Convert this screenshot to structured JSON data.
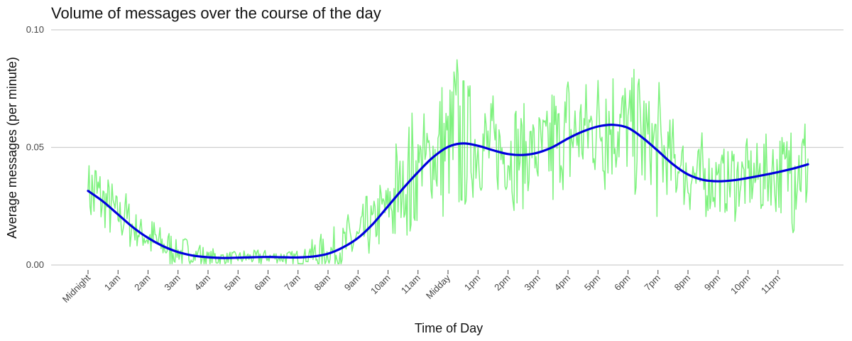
{
  "chart_data": {
    "type": "line",
    "title": "Volume of messages over the course of the day",
    "xlabel": "Time of Day",
    "ylabel": "Average messages (per minute)",
    "ylim": [
      0,
      0.1
    ],
    "yticks": [
      "0.00",
      "0.05",
      "0.10"
    ],
    "ytick_values": [
      0,
      0.05,
      0.1
    ],
    "grid": "horizontal major gridlines",
    "legend": "none",
    "xticks": [
      "Midnight",
      "1am",
      "2am",
      "3am",
      "4am",
      "5am",
      "6am",
      "7am",
      "8am",
      "9am",
      "10am",
      "11am",
      "Midday",
      "1pm",
      "2pm",
      "3pm",
      "4pm",
      "5pm",
      "6pm",
      "7pm",
      "8pm",
      "9pm",
      "10pm",
      "11pm"
    ],
    "x_unit": "hour of day",
    "xlim": [
      -0.05,
      24.05
    ],
    "colors": {
      "raw": "#7ef27e",
      "smooth": "#0000dd"
    },
    "series": [
      {
        "kind": "raw per-minute averages (approximate envelope)",
        "x": [
          0.0,
          0.25,
          0.5,
          0.75,
          1.0,
          1.25,
          1.5,
          1.75,
          2.0,
          2.25,
          2.5,
          2.75,
          3.0,
          3.25,
          3.5,
          3.75,
          4.0,
          4.25,
          4.5,
          4.75,
          5.0,
          5.25,
          5.5,
          5.75,
          6.0,
          6.25,
          6.5,
          6.75,
          7.0,
          7.25,
          7.5,
          7.75,
          8.0,
          8.25,
          8.5,
          8.75,
          9.0,
          9.25,
          9.5,
          9.75,
          10.0,
          10.25,
          10.5,
          10.75,
          11.0,
          11.25,
          11.5,
          11.75,
          12.0,
          12.25,
          12.5,
          12.75,
          13.0,
          13.25,
          13.5,
          13.75,
          14.0,
          14.25,
          14.5,
          14.75,
          15.0,
          15.25,
          15.5,
          15.75,
          16.0,
          16.25,
          16.5,
          16.75,
          17.0,
          17.25,
          17.5,
          17.75,
          18.0,
          18.25,
          18.5,
          18.75,
          19.0,
          19.25,
          19.5,
          19.75,
          20.0,
          20.25,
          20.5,
          20.75,
          21.0,
          21.25,
          21.5,
          21.75,
          22.0,
          22.25,
          22.5,
          22.75,
          23.0,
          23.25,
          23.5,
          23.75,
          24.0
        ],
        "y": [
          0.032,
          0.042,
          0.028,
          0.03,
          0.02,
          0.026,
          0.018,
          0.015,
          0.014,
          0.018,
          0.01,
          0.013,
          0.006,
          0.011,
          0.004,
          0.008,
          0.003,
          0.006,
          0.002,
          0.004,
          0.003,
          0.005,
          0.002,
          0.006,
          0.003,
          0.004,
          0.002,
          0.003,
          0.002,
          0.002,
          0.01,
          0.012,
          0.006,
          0.016,
          0.014,
          0.022,
          0.012,
          0.026,
          0.02,
          0.03,
          0.024,
          0.05,
          0.03,
          0.06,
          0.045,
          0.055,
          0.04,
          0.07,
          0.055,
          0.085,
          0.065,
          0.062,
          0.05,
          0.042,
          0.058,
          0.04,
          0.048,
          0.036,
          0.055,
          0.044,
          0.052,
          0.045,
          0.068,
          0.05,
          0.07,
          0.052,
          0.062,
          0.058,
          0.052,
          0.072,
          0.05,
          0.064,
          0.06,
          0.045,
          0.04,
          0.052,
          0.03,
          0.048,
          0.035,
          0.042,
          0.03,
          0.045,
          0.025,
          0.04,
          0.038,
          0.032,
          0.044,
          0.036,
          0.042,
          0.034,
          0.046,
          0.038,
          0.048,
          0.04,
          0.062,
          0.035,
          0.03
        ]
      },
      {
        "kind": "smoothed trend",
        "x": [
          0,
          0.5,
          1,
          1.5,
          2,
          2.5,
          3,
          3.5,
          4,
          4.5,
          5,
          5.5,
          6,
          6.5,
          7,
          7.5,
          8,
          8.5,
          9,
          9.5,
          10,
          10.5,
          11,
          11.5,
          12,
          12.5,
          13,
          13.5,
          14,
          14.5,
          15,
          15.5,
          16,
          16.5,
          17,
          17.5,
          18,
          18.5,
          19,
          19.5,
          20,
          20.5,
          21,
          21.5,
          22,
          22.5,
          23,
          23.5,
          24
        ],
        "y": [
          0.0315,
          0.027,
          0.0215,
          0.016,
          0.0115,
          0.008,
          0.0055,
          0.004,
          0.0033,
          0.003,
          0.0031,
          0.0033,
          0.0034,
          0.0033,
          0.0032,
          0.0036,
          0.0048,
          0.0075,
          0.0115,
          0.0175,
          0.025,
          0.0325,
          0.0395,
          0.0458,
          0.0502,
          0.0517,
          0.0507,
          0.0488,
          0.0472,
          0.0468,
          0.0478,
          0.0502,
          0.0538,
          0.0568,
          0.0589,
          0.0596,
          0.0583,
          0.054,
          0.0485,
          0.0428,
          0.0385,
          0.0362,
          0.0356,
          0.036,
          0.037,
          0.0382,
          0.0395,
          0.041,
          0.0428
        ]
      }
    ]
  }
}
